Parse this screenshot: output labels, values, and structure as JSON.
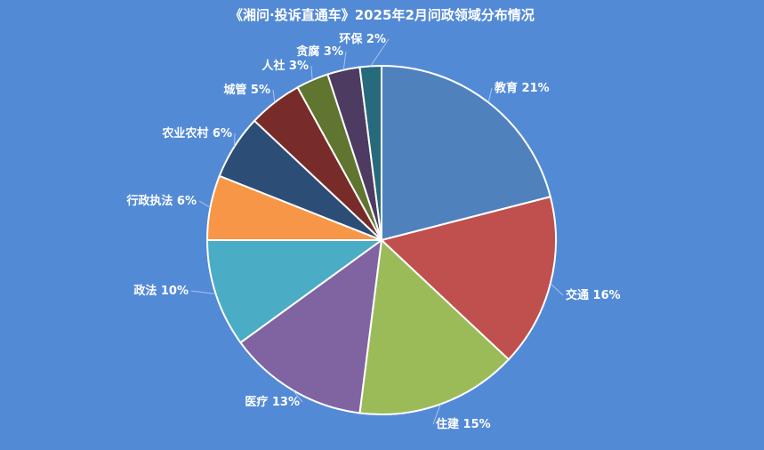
{
  "chart_data": {
    "type": "pie",
    "title": "《湘问·投诉直通车》2025年2月问政领域分布情况",
    "slices": [
      {
        "name": "教育",
        "value": 21,
        "color": "#4f81bd"
      },
      {
        "name": "交通",
        "value": 16,
        "color": "#c0504d"
      },
      {
        "name": "住建",
        "value": 15,
        "color": "#9bbb59"
      },
      {
        "name": "医疗",
        "value": 13,
        "color": "#8064a2"
      },
      {
        "name": "政法",
        "value": 10,
        "color": "#4bacc6"
      },
      {
        "name": "行政执法",
        "value": 6,
        "color": "#f79646"
      },
      {
        "name": "农业农村",
        "value": 6,
        "color": "#2c4d75"
      },
      {
        "name": "城管",
        "value": 5,
        "color": "#772c2a"
      },
      {
        "name": "人社",
        "value": 3,
        "color": "#5f7530"
      },
      {
        "name": "贪腐",
        "value": 3,
        "color": "#4d3b62"
      },
      {
        "name": "环保",
        "value": 2,
        "color": "#276a7c"
      }
    ],
    "label_format": "{name} {value}%"
  }
}
